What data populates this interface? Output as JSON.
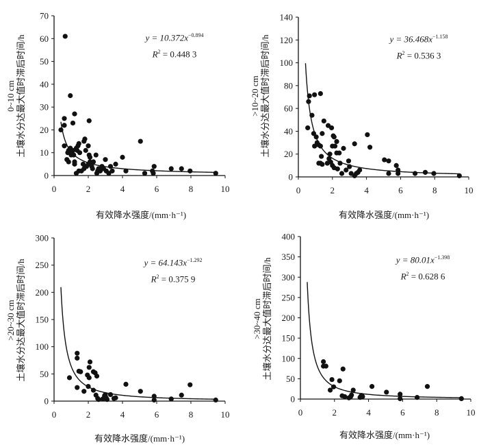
{
  "chart_data": [
    {
      "type": "scatter",
      "title": "",
      "depth_label": "0~10 cm",
      "ylabel": "土壤水分达最大值时滞后时间/h",
      "xlabel": "有效降水强度/(mm·h⁻¹)",
      "xlim": [
        0,
        10
      ],
      "ylim": [
        0,
        70
      ],
      "xticks": [
        "0",
        "2",
        "4",
        "6",
        "8",
        "10"
      ],
      "yticks": [
        "0",
        "10",
        "20",
        "30",
        "40",
        "50",
        "60",
        "70"
      ],
      "yticks_values": [
        0,
        10,
        20,
        30,
        40,
        50,
        60,
        70
      ],
      "fit": {
        "a": 10.372,
        "b": -0.894,
        "xmin": 0.4,
        "xmax": 9.45
      },
      "equation": {
        "prefix": "y = 10.372x",
        "exponent": "−0.894",
        "r2_label": "R",
        "r2_value": " = 0.448 3"
      },
      "points": [
        [
          0.65,
          61
        ],
        [
          0.95,
          35
        ],
        [
          1.2,
          27
        ],
        [
          1.1,
          23
        ],
        [
          0.6,
          25
        ],
        [
          0.6,
          22
        ],
        [
          2.05,
          24
        ],
        [
          0.4,
          20
        ],
        [
          0.6,
          13
        ],
        [
          0.75,
          7
        ],
        [
          0.85,
          6
        ],
        [
          0.8,
          10
        ],
        [
          0.85,
          11
        ],
        [
          0.95,
          12
        ],
        [
          1.0,
          9
        ],
        [
          1.05,
          10
        ],
        [
          1.1,
          11
        ],
        [
          1.15,
          9
        ],
        [
          1.2,
          5
        ],
        [
          1.2,
          6
        ],
        [
          1.3,
          12
        ],
        [
          1.35,
          11
        ],
        [
          1.4,
          13
        ],
        [
          1.45,
          14
        ],
        [
          1.5,
          10
        ],
        [
          1.75,
          15
        ],
        [
          1.8,
          16
        ],
        [
          1.85,
          11
        ],
        [
          2.0,
          13
        ],
        [
          2.05,
          9
        ],
        [
          2.1,
          8
        ],
        [
          1.7,
          5
        ],
        [
          1.75,
          3
        ],
        [
          1.3,
          1
        ],
        [
          1.45,
          2
        ],
        [
          1.6,
          2
        ],
        [
          1.9,
          4
        ],
        [
          2.0,
          5
        ],
        [
          2.1,
          6
        ],
        [
          2.2,
          4
        ],
        [
          2.3,
          6
        ],
        [
          2.25,
          3
        ],
        [
          2.45,
          9
        ],
        [
          2.5,
          1
        ],
        [
          2.55,
          2
        ],
        [
          2.6,
          3
        ],
        [
          2.7,
          2
        ],
        [
          2.8,
          4
        ],
        [
          2.9,
          3
        ],
        [
          3.0,
          7
        ],
        [
          3.05,
          2
        ],
        [
          3.2,
          1
        ],
        [
          3.3,
          4
        ],
        [
          3.4,
          2
        ],
        [
          3.6,
          5
        ],
        [
          4.0,
          8
        ],
        [
          4.2,
          2
        ],
        [
          5.05,
          15
        ],
        [
          5.3,
          1
        ],
        [
          5.75,
          2
        ],
        [
          5.8,
          1
        ],
        [
          5.85,
          4
        ],
        [
          6.85,
          3
        ],
        [
          7.45,
          3
        ],
        [
          7.95,
          2
        ],
        [
          9.45,
          1
        ]
      ]
    },
    {
      "type": "scatter",
      "title": "",
      "depth_label": ">10~20 cm",
      "ylabel": "土壤水分达最大值时滞后时间/h",
      "xlabel": "有效降水强度/(mm·h⁻¹)",
      "xlim": [
        0,
        10
      ],
      "ylim": [
        0,
        140
      ],
      "xticks": [
        "0",
        "2",
        "4",
        "6",
        "8",
        "10"
      ],
      "yticks": [
        "0",
        "20",
        "40",
        "60",
        "80",
        "100",
        "120",
        "140"
      ],
      "yticks_values": [
        0,
        20,
        40,
        60,
        80,
        100,
        120,
        140
      ],
      "fit": {
        "a": 36.468,
        "b": -1.158,
        "xmin": 0.42,
        "xmax": 9.45
      },
      "equation": {
        "prefix": "y = 36.468x",
        "exponent": "−1.158",
        "r2_label": "R",
        "r2_value": " = 0.536 3"
      },
      "points": [
        [
          0.65,
          71
        ],
        [
          0.95,
          72
        ],
        [
          1.3,
          73
        ],
        [
          0.6,
          66
        ],
        [
          0.8,
          54
        ],
        [
          0.55,
          43
        ],
        [
          0.9,
          38
        ],
        [
          1.05,
          35
        ],
        [
          0.95,
          27
        ],
        [
          1.1,
          30
        ],
        [
          1.2,
          28
        ],
        [
          1.3,
          27
        ],
        [
          1.5,
          49
        ],
        [
          1.75,
          45
        ],
        [
          1.95,
          43
        ],
        [
          1.4,
          38
        ],
        [
          2.05,
          36
        ],
        [
          2.1,
          35
        ],
        [
          2.25,
          31
        ],
        [
          2.0,
          27
        ],
        [
          2.15,
          27
        ],
        [
          2.25,
          21
        ],
        [
          2.4,
          21
        ],
        [
          2.65,
          25
        ],
        [
          1.2,
          12
        ],
        [
          1.3,
          12
        ],
        [
          1.35,
          18
        ],
        [
          1.4,
          11
        ],
        [
          1.7,
          12
        ],
        [
          1.8,
          16
        ],
        [
          1.85,
          20
        ],
        [
          1.9,
          13
        ],
        [
          2.0,
          10
        ],
        [
          2.1,
          8
        ],
        [
          2.3,
          7
        ],
        [
          2.45,
          12
        ],
        [
          2.55,
          3
        ],
        [
          2.8,
          6
        ],
        [
          2.95,
          14
        ],
        [
          3.0,
          9
        ],
        [
          3.1,
          3
        ],
        [
          3.3,
          29
        ],
        [
          3.3,
          1
        ],
        [
          3.4,
          3
        ],
        [
          3.5,
          4
        ],
        [
          3.6,
          6
        ],
        [
          4.05,
          37
        ],
        [
          4.2,
          26
        ],
        [
          5.05,
          15
        ],
        [
          5.3,
          14
        ],
        [
          5.3,
          3
        ],
        [
          5.75,
          10
        ],
        [
          5.85,
          6
        ],
        [
          5.85,
          3
        ],
        [
          6.85,
          3
        ],
        [
          7.45,
          4
        ],
        [
          7.95,
          3
        ],
        [
          9.45,
          1
        ]
      ]
    },
    {
      "type": "scatter",
      "title": "",
      "depth_label": ">20~30 cm",
      "ylabel": "土壤水分达最大值时滞后时间/h",
      "xlabel": "有效降水强度/(mm·h⁻¹)",
      "xlim": [
        0,
        10
      ],
      "ylim": [
        0,
        300
      ],
      "xticks": [
        "0",
        "2",
        "4",
        "6",
        "8",
        "10"
      ],
      "yticks": [
        "0",
        "50",
        "100",
        "150",
        "200",
        "250",
        "300"
      ],
      "yticks_values": [
        0,
        50,
        100,
        150,
        200,
        250,
        300
      ],
      "fit": {
        "a": 64.143,
        "b": -1.292,
        "xmin": 0.4,
        "xmax": 9.45
      },
      "equation": {
        "prefix": "y = 64.143x",
        "exponent": "−1.292",
        "r2_label": "R",
        "r2_value": " = 0.375 9"
      },
      "points": [
        [
          0.9,
          43
        ],
        [
          1.35,
          88
        ],
        [
          1.35,
          79
        ],
        [
          1.45,
          55
        ],
        [
          1.55,
          54
        ],
        [
          1.35,
          25
        ],
        [
          1.75,
          18
        ],
        [
          1.95,
          48
        ],
        [
          2.05,
          43
        ],
        [
          2.05,
          62
        ],
        [
          2.1,
          72
        ],
        [
          2.0,
          27
        ],
        [
          2.3,
          54
        ],
        [
          2.4,
          52
        ],
        [
          2.5,
          46
        ],
        [
          2.3,
          20
        ],
        [
          2.45,
          11
        ],
        [
          2.55,
          5
        ],
        [
          2.6,
          3
        ],
        [
          2.85,
          4
        ],
        [
          2.95,
          10
        ],
        [
          3.0,
          12
        ],
        [
          3.05,
          6
        ],
        [
          3.1,
          3
        ],
        [
          3.3,
          12
        ],
        [
          3.5,
          5
        ],
        [
          3.6,
          6
        ],
        [
          4.2,
          31
        ],
        [
          5.05,
          18
        ],
        [
          5.85,
          9
        ],
        [
          5.85,
          2
        ],
        [
          6.85,
          4
        ],
        [
          7.45,
          11
        ],
        [
          7.95,
          30
        ],
        [
          9.45,
          2
        ]
      ]
    },
    {
      "type": "scatter",
      "title": "",
      "depth_label": ">30~40 cm",
      "ylabel": "土壤水分达最大值时滞后时间/h",
      "xlabel": "有效降水强度/(mm·h⁻¹)",
      "xlim": [
        0,
        10
      ],
      "ylim": [
        0,
        400
      ],
      "xticks": [
        "0",
        "2",
        "4",
        "6",
        "8",
        "10"
      ],
      "yticks": [
        "0",
        "50",
        "100",
        "150",
        "200",
        "250",
        "300",
        "350",
        "400"
      ],
      "yticks_values": [
        0,
        50,
        100,
        150,
        200,
        250,
        300,
        350,
        400
      ],
      "fit": {
        "a": 80.01,
        "b": -1.398,
        "xmin": 0.4,
        "xmax": 9.45
      },
      "equation": {
        "prefix": "y = 80.01x",
        "exponent": "−1.398",
        "r2_label": "R",
        "r2_value": " = 0.628 6"
      },
      "points": [
        [
          1.35,
          92
        ],
        [
          1.35,
          81
        ],
        [
          1.5,
          81
        ],
        [
          1.85,
          48
        ],
        [
          1.95,
          30
        ],
        [
          1.75,
          22
        ],
        [
          2.3,
          45
        ],
        [
          2.5,
          74
        ],
        [
          2.45,
          8
        ],
        [
          2.6,
          6
        ],
        [
          2.85,
          3
        ],
        [
          2.95,
          6
        ],
        [
          3.0,
          10
        ],
        [
          3.1,
          22
        ],
        [
          3.5,
          4
        ],
        [
          3.55,
          7
        ],
        [
          3.6,
          9
        ],
        [
          3.65,
          6
        ],
        [
          4.2,
          31
        ],
        [
          5.05,
          17
        ],
        [
          5.85,
          12
        ],
        [
          5.85,
          1
        ],
        [
          6.85,
          4
        ],
        [
          7.45,
          31
        ],
        [
          9.45,
          1
        ]
      ]
    }
  ],
  "colors": {
    "ink": "#111111",
    "text": "#1a1a1a",
    "background": "#ffffff"
  }
}
